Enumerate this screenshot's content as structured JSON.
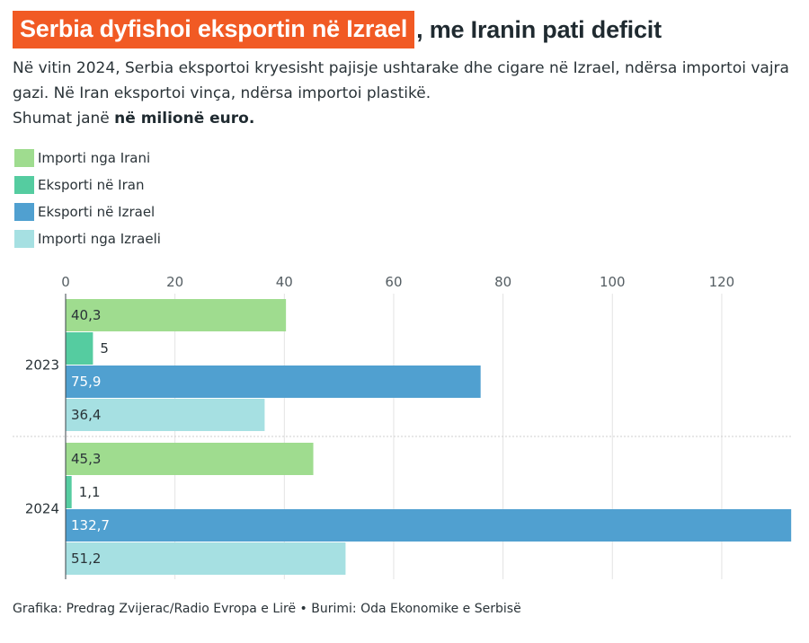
{
  "header": {
    "title_highlight": "Serbia dyfishoi eksportin në Izrael",
    "title_rest": ", me Iranin pati deficit",
    "subtitle_line1": "Në vitin 2024, Serbia eksportoi kryesisht pajisje ushtarake dhe cigare në Izrael, ndërsa importoi vajra gazi. Në Iran eksportoi vinça, ndërsa importoi plastikë.",
    "subtitle_line2_prefix": "Shumat janë ",
    "subtitle_line2_bold": "në milionë euro."
  },
  "colors": {
    "highlight": "#f15a24",
    "importi_irani": "#9fdc8f",
    "eksporti_iran": "#55cca0",
    "eksporti_izrael": "#50a0d0",
    "importi_izraeli": "#a6e0e2"
  },
  "chart_data": {
    "type": "bar",
    "orientation": "horizontal",
    "categories": [
      "2023",
      "2024"
    ],
    "series": [
      {
        "name": "Importi nga Irani",
        "color_key": "importi_irani",
        "values": [
          40.3,
          45.3
        ],
        "labels": [
          "40,3",
          "45,3"
        ]
      },
      {
        "name": "Eksporti në Iran",
        "color_key": "eksporti_iran",
        "values": [
          5,
          1.1
        ],
        "labels": [
          "5",
          "1,1"
        ]
      },
      {
        "name": "Eksporti në Izrael",
        "color_key": "eksporti_izrael",
        "values": [
          75.9,
          132.7
        ],
        "labels": [
          "75,9",
          "132,7"
        ]
      },
      {
        "name": "Importi nga Izraeli",
        "color_key": "importi_izraeli",
        "values": [
          36.4,
          51.2
        ],
        "labels": [
          "36,4",
          "51,2"
        ]
      }
    ],
    "xlim": [
      0,
      133
    ],
    "ticks": [
      0,
      20,
      40,
      60,
      80,
      100,
      120
    ],
    "title": "Serbia dyfishoi eksportin në Izrael, me Iranin pati deficit",
    "xlabel": "",
    "ylabel": "",
    "grid": true
  },
  "footer": {
    "credit": "Grafika: Predrag Zvijerac/Radio Evropa e Lirë • Burimi: Oda Ekonomike e Serbisë"
  }
}
